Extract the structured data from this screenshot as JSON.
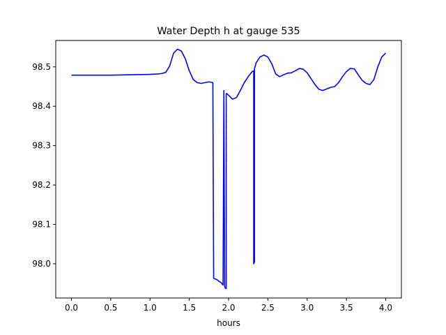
{
  "chart_data": {
    "type": "line",
    "title": "Water Depth h at gauge 535",
    "xlabel": "hours",
    "ylabel": "",
    "xlim": [
      -0.2,
      4.2
    ],
    "ylim": [
      97.913,
      98.567
    ],
    "xticks": [
      0.0,
      0.5,
      1.0,
      1.5,
      2.0,
      2.5,
      3.0,
      3.5,
      4.0
    ],
    "xtick_labels": [
      "0.0",
      "0.5",
      "1.0",
      "1.5",
      "2.0",
      "2.5",
      "3.0",
      "3.5",
      "4.0"
    ],
    "yticks": [
      98.0,
      98.1,
      98.2,
      98.3,
      98.4,
      98.5
    ],
    "ytick_labels": [
      "98.0",
      "98.1",
      "98.2",
      "98.3",
      "98.4",
      "98.5"
    ],
    "grid": false,
    "series": [
      {
        "color": "#0000ff",
        "x": [
          0.0,
          0.5,
          1.0,
          1.1,
          1.15,
          1.2,
          1.25,
          1.3,
          1.35,
          1.4,
          1.45,
          1.5,
          1.55,
          1.6,
          1.65,
          1.7,
          1.75,
          1.8,
          1.81,
          1.82,
          1.85,
          1.88,
          1.9,
          1.93,
          1.94,
          1.95,
          1.96,
          1.97,
          1.97,
          1.98,
          1.99,
          2.0,
          2.05,
          2.1,
          2.15,
          2.2,
          2.25,
          2.3,
          2.32,
          2.32,
          2.33,
          2.33,
          2.35,
          2.4,
          2.45,
          2.5,
          2.55,
          2.6,
          2.65,
          2.7,
          2.75,
          2.8,
          2.85,
          2.9,
          2.95,
          3.0,
          3.05,
          3.1,
          3.15,
          3.2,
          3.25,
          3.3,
          3.35,
          3.4,
          3.45,
          3.5,
          3.55,
          3.6,
          3.65,
          3.7,
          3.75,
          3.8,
          3.85,
          3.9,
          3.95,
          4.0
        ],
        "y": [
          98.479,
          98.479,
          98.481,
          98.482,
          98.483,
          98.486,
          98.502,
          98.535,
          98.545,
          98.54,
          98.52,
          98.49,
          98.468,
          98.46,
          98.458,
          98.46,
          98.462,
          98.46,
          97.963,
          97.962,
          97.96,
          97.955,
          97.953,
          97.946,
          98.44,
          97.942,
          97.938,
          97.937,
          98.432,
          98.432,
          98.43,
          98.428,
          98.418,
          98.422,
          98.44,
          98.46,
          98.475,
          98.488,
          98.49,
          98.0,
          98.005,
          98.495,
          98.51,
          98.525,
          98.53,
          98.525,
          98.508,
          98.482,
          98.475,
          98.48,
          98.484,
          98.485,
          98.49,
          98.496,
          98.494,
          98.485,
          98.47,
          98.455,
          98.443,
          98.44,
          98.444,
          98.448,
          98.45,
          98.46,
          98.475,
          98.488,
          98.496,
          98.495,
          98.48,
          98.466,
          98.458,
          98.455,
          98.468,
          98.5,
          98.525,
          98.535
        ]
      }
    ]
  }
}
